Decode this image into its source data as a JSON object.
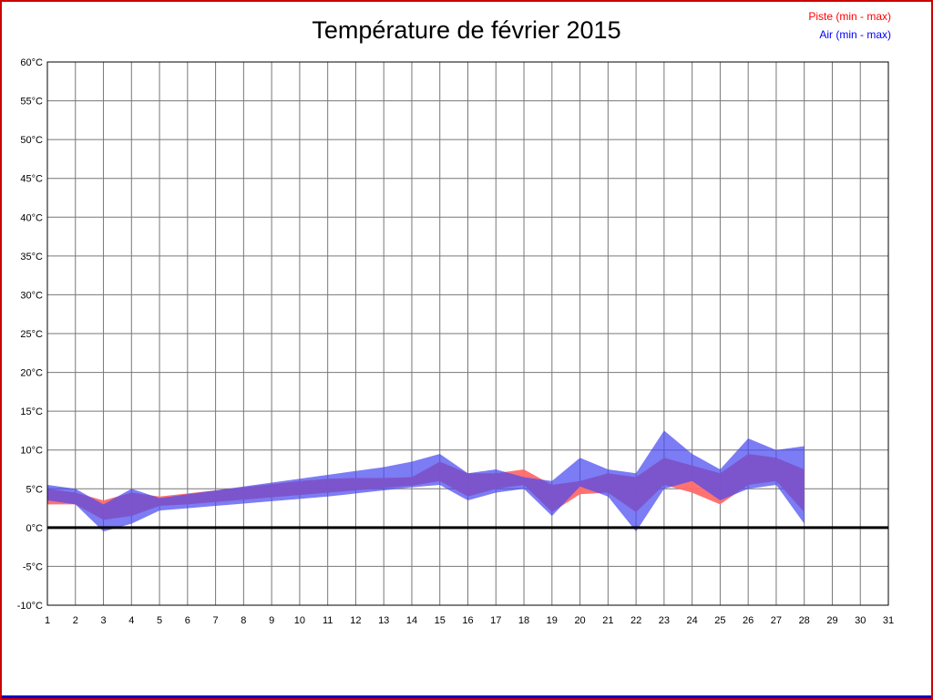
{
  "title": "Température de février 2015",
  "legend": {
    "piste": "Piste (min - max)",
    "air": "Air (min - max)"
  },
  "colors": {
    "piste_fill": "#ff6a6a",
    "air_fill": "#4a4af0",
    "piste_text": "#ff0000",
    "air_text": "#0000ff",
    "grid": "#777777",
    "plot_border": "#000000",
    "zero_line": "#000000",
    "page_border": "#cc0000",
    "bottom_line": "#0000cc"
  },
  "chart_data": {
    "type": "area",
    "title": "Température de février 2015",
    "xlabel": "",
    "ylabel": "°C",
    "x_axis_range": [
      1,
      31
    ],
    "ylim": [
      -10,
      60
    ],
    "grid": true,
    "legend_position": "top-right",
    "x_ticks": [
      1,
      2,
      3,
      4,
      5,
      6,
      7,
      8,
      9,
      10,
      11,
      12,
      13,
      14,
      15,
      16,
      17,
      18,
      19,
      20,
      21,
      22,
      23,
      24,
      25,
      26,
      27,
      28,
      29,
      30,
      31
    ],
    "y_ticks": [
      60,
      55,
      50,
      45,
      40,
      35,
      30,
      25,
      20,
      15,
      10,
      5,
      0,
      -5,
      -10
    ],
    "y_tick_suffix": "°C",
    "x": [
      1,
      2,
      3,
      4,
      5,
      6,
      7,
      8,
      9,
      10,
      11,
      12,
      13,
      14,
      15,
      16,
      17,
      18,
      19,
      20,
      21,
      22,
      23,
      24,
      25,
      26,
      27,
      28
    ],
    "series": [
      {
        "name": "Piste (min - max)",
        "min": [
          3.0,
          3.0,
          1.0,
          1.5,
          2.8,
          3.0,
          3.3,
          3.6,
          3.9,
          4.2,
          4.5,
          4.8,
          5.1,
          5.4,
          6.0,
          4.0,
          5.0,
          5.5,
          2.0,
          4.3,
          4.5,
          2.0,
          5.5,
          4.5,
          3.0,
          5.5,
          6.0,
          2.0
        ],
        "max": [
          5.0,
          4.5,
          3.5,
          4.5,
          4.0,
          4.4,
          4.8,
          5.2,
          5.6,
          6.0,
          6.3,
          6.4,
          6.4,
          6.5,
          8.5,
          7.0,
          7.0,
          7.5,
          5.5,
          6.0,
          7.0,
          6.5,
          9.0,
          8.0,
          7.0,
          9.5,
          9.0,
          7.5
        ]
      },
      {
        "name": "Air (min - max)",
        "min": [
          3.5,
          3.0,
          -0.5,
          0.5,
          2.2,
          2.5,
          2.8,
          3.1,
          3.4,
          3.7,
          4.0,
          4.4,
          4.8,
          5.2,
          5.5,
          3.5,
          4.5,
          5.0,
          1.5,
          5.3,
          4.0,
          -0.5,
          5.0,
          6.0,
          3.5,
          5.0,
          5.5,
          0.5
        ],
        "max": [
          5.5,
          5.0,
          3.0,
          5.0,
          3.8,
          4.3,
          4.8,
          5.3,
          5.8,
          6.3,
          6.8,
          7.3,
          7.8,
          8.5,
          9.5,
          7.0,
          7.5,
          6.5,
          6.0,
          9.0,
          7.5,
          7.0,
          12.5,
          9.5,
          7.5,
          11.5,
          10.0,
          10.5
        ]
      }
    ]
  }
}
